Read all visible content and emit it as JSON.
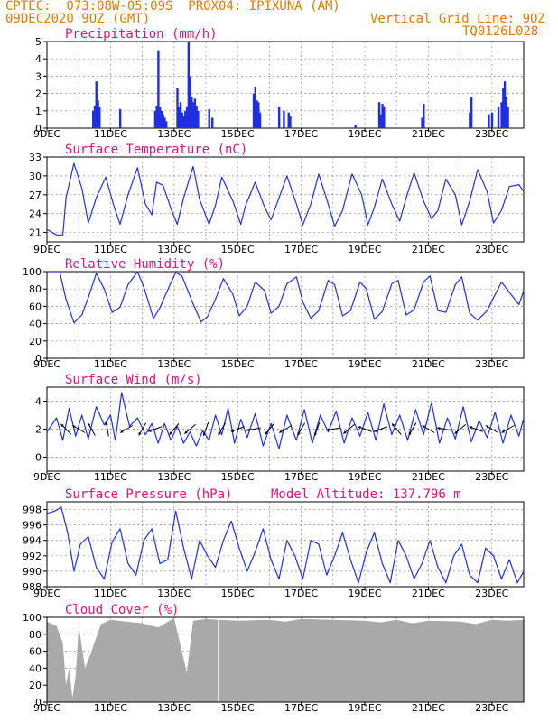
{
  "header": {
    "line1": "CPTEC:  073:08W-05:09S  PROX04: IPIXUNA (AM)",
    "line2": "09DEC2020 9OZ (GMT)",
    "grid_note": "Vertical Grid Line: 9OZ",
    "code": "TQ0126L028"
  },
  "colors": {
    "series": "#1f2fe0",
    "panel_title": "#e0107a",
    "header": "#e07a00",
    "cloud": "#a9a9a9"
  },
  "x_ticks": [
    "9DEC",
    "11DEC",
    "13DEC",
    "15DEC",
    "17DEC",
    "19DEC",
    "21DEC",
    "23DEC"
  ],
  "chart_data": [
    {
      "id": "precip",
      "type": "bar",
      "title": "Precipitation (mm/h)",
      "ylim": [
        0,
        5
      ],
      "yticks": [
        0,
        1,
        2,
        3,
        4,
        5
      ],
      "x_range_days": [
        0,
        15
      ],
      "x_day": [
        1.45,
        1.5,
        1.55,
        1.6,
        1.65,
        2.3,
        3.4,
        3.45,
        3.5,
        3.55,
        3.6,
        3.65,
        3.7,
        3.75,
        4.1,
        4.15,
        4.2,
        4.25,
        4.3,
        4.35,
        4.4,
        4.45,
        4.5,
        4.55,
        4.6,
        4.65,
        4.7,
        4.75,
        5.1,
        5.2,
        6.5,
        6.55,
        6.6,
        6.65,
        6.7,
        7.3,
        7.45,
        7.6,
        7.65,
        9.7,
        10.45,
        10.5,
        10.55,
        10.6,
        11.8,
        11.85,
        13.3,
        13.35,
        13.9,
        14.0,
        14.2,
        14.3,
        14.35,
        14.4,
        14.45,
        14.5
      ],
      "values": [
        1.0,
        1.3,
        2.7,
        1.6,
        1.2,
        1.1,
        1.0,
        1.3,
        4.5,
        1.2,
        1.0,
        0.8,
        0.6,
        0.4,
        2.3,
        1.2,
        1.5,
        0.9,
        0.7,
        1.0,
        1.2,
        5.0,
        3.0,
        1.8,
        1.5,
        1.7,
        1.3,
        1.0,
        1.1,
        0.6,
        2.0,
        2.4,
        1.6,
        1.5,
        0.9,
        1.2,
        1.0,
        0.9,
        0.7,
        0.2,
        1.5,
        0.8,
        1.4,
        1.2,
        0.6,
        1.4,
        0.9,
        1.8,
        0.8,
        0.9,
        1.2,
        1.5,
        2.3,
        2.7,
        1.8,
        1.2
      ]
    },
    {
      "id": "temp",
      "type": "line",
      "title": "Surface Temperature (nC)",
      "ylim": [
        19.5,
        33
      ],
      "yticks": [
        21,
        24,
        27,
        30,
        33
      ],
      "x_range_days": [
        0,
        15
      ],
      "x_day": [
        0,
        0.3,
        0.5,
        0.6,
        0.85,
        1.1,
        1.3,
        1.55,
        1.85,
        2.1,
        2.3,
        2.55,
        2.85,
        3.1,
        3.3,
        3.45,
        3.65,
        3.9,
        4.1,
        4.3,
        4.6,
        4.8,
        5.1,
        5.3,
        5.5,
        5.85,
        6.1,
        6.25,
        6.55,
        6.85,
        7.05,
        7.3,
        7.55,
        7.85,
        8.05,
        8.3,
        8.55,
        8.85,
        9.05,
        9.3,
        9.6,
        9.9,
        10.1,
        10.3,
        10.55,
        10.85,
        11.1,
        11.3,
        11.55,
        11.85,
        12.1,
        12.3,
        12.55,
        12.85,
        13.05,
        13.3,
        13.55,
        13.85,
        14.05,
        14.3,
        14.55,
        14.85,
        15
      ],
      "y": [
        21.5,
        20.6,
        20.6,
        26.5,
        32.0,
        28.0,
        22.5,
        26.5,
        29.8,
        25.3,
        22.3,
        27.0,
        31.3,
        25.5,
        23.8,
        29.0,
        28.5,
        24.8,
        22.3,
        26.5,
        31.5,
        26.3,
        22.3,
        25.3,
        29.8,
        26.0,
        22.3,
        25.3,
        29.0,
        25.0,
        23.0,
        26.5,
        30.0,
        25.5,
        22.2,
        25.5,
        30.3,
        25.5,
        22.0,
        24.5,
        30.3,
        27.0,
        22.2,
        25.0,
        29.5,
        25.5,
        22.8,
        26.5,
        30.5,
        26.0,
        23.2,
        24.5,
        29.5,
        27.0,
        22.2,
        26.0,
        31.0,
        27.5,
        22.5,
        24.5,
        28.3,
        28.6,
        27.5
      ]
    },
    {
      "id": "rh",
      "type": "line",
      "title": "Relative Humidity (%)",
      "ylim": [
        0,
        100
      ],
      "yticks": [
        0,
        20,
        40,
        60,
        80,
        100
      ],
      "x_range_days": [
        0,
        15
      ],
      "x_day": [
        0,
        0.2,
        0.4,
        0.6,
        0.85,
        1.1,
        1.3,
        1.55,
        1.8,
        2.05,
        2.3,
        2.55,
        2.85,
        3.05,
        3.35,
        3.55,
        3.85,
        4.05,
        4.25,
        4.55,
        4.85,
        5.05,
        5.3,
        5.55,
        5.85,
        6.05,
        6.3,
        6.55,
        6.85,
        7.05,
        7.3,
        7.55,
        7.85,
        8.05,
        8.3,
        8.55,
        8.85,
        9.05,
        9.3,
        9.55,
        9.85,
        10.05,
        10.3,
        10.55,
        10.85,
        11.05,
        11.3,
        11.55,
        11.85,
        12.05,
        12.3,
        12.55,
        12.85,
        13.05,
        13.3,
        13.55,
        13.85,
        14.05,
        14.3,
        14.55,
        14.85,
        15
      ],
      "y": [
        100,
        100,
        100,
        68,
        41,
        50,
        70,
        98,
        80,
        53,
        59,
        85,
        100,
        82,
        46,
        58,
        83,
        99,
        95,
        67,
        42,
        48,
        68,
        92,
        74,
        49,
        60,
        88,
        78,
        52,
        60,
        86,
        94,
        65,
        46,
        55,
        90,
        85,
        49,
        55,
        88,
        80,
        45,
        54,
        86,
        90,
        50,
        56,
        88,
        95,
        55,
        53,
        85,
        94,
        52,
        44,
        55,
        70,
        88,
        76,
        62,
        78
      ]
    },
    {
      "id": "wind",
      "type": "line",
      "title": "Surface Wind (m/s)",
      "ylim": [
        -1,
        5
      ],
      "yticks": [
        0,
        2,
        4
      ],
      "x_range_days": [
        0,
        15
      ],
      "x_day": [
        0,
        0.3,
        0.5,
        0.7,
        0.9,
        1.1,
        1.3,
        1.55,
        1.8,
        2.0,
        2.15,
        2.35,
        2.6,
        2.85,
        3.1,
        3.3,
        3.5,
        3.7,
        3.9,
        4.1,
        4.3,
        4.5,
        4.7,
        4.9,
        5.1,
        5.3,
        5.5,
        5.7,
        5.9,
        6.1,
        6.3,
        6.55,
        6.8,
        7.05,
        7.3,
        7.55,
        7.85,
        8.1,
        8.35,
        8.6,
        8.85,
        9.1,
        9.35,
        9.6,
        9.85,
        10.1,
        10.35,
        10.6,
        10.85,
        11.1,
        11.35,
        11.6,
        11.85,
        12.1,
        12.35,
        12.6,
        12.85,
        13.1,
        13.35,
        13.6,
        13.85,
        14.1,
        14.35,
        14.6,
        14.85,
        15
      ],
      "y": [
        1.8,
        2.8,
        1.2,
        3.5,
        1.5,
        3.0,
        1.3,
        3.6,
        2.3,
        3.0,
        1.2,
        4.6,
        2.2,
        2.8,
        1.6,
        2.4,
        1.0,
        2.4,
        1.2,
        2.2,
        1.0,
        1.8,
        0.8,
        1.9,
        1.2,
        3.0,
        1.6,
        3.5,
        1.0,
        2.7,
        1.4,
        3.1,
        0.8,
        2.4,
        0.6,
        3.0,
        1.2,
        3.4,
        1.0,
        3.0,
        1.8,
        3.3,
        1.0,
        2.8,
        1.5,
        3.2,
        1.2,
        3.8,
        1.6,
        3.0,
        1.2,
        3.4,
        1.6,
        3.9,
        1.0,
        2.8,
        1.3,
        3.6,
        1.1,
        2.6,
        1.4,
        3.2,
        1.0,
        3.0,
        1.5,
        2.8
      ],
      "arrows_day": [
        0.6,
        1.0,
        1.4,
        1.9,
        2.5,
        3.0,
        3.4,
        4.0,
        4.5,
        5.0,
        5.5,
        6.0,
        6.5,
        7.0,
        7.5,
        8.0,
        8.5,
        9.0,
        9.5,
        10.0,
        10.5,
        11.0,
        11.5,
        12.0,
        12.5,
        13.0,
        13.5,
        14.0,
        14.5
      ],
      "arrows_dir": [
        315,
        300,
        330,
        350,
        240,
        210,
        250,
        220,
        230,
        200,
        210,
        250,
        260,
        220,
        240,
        210,
        200,
        260,
        230,
        290,
        250,
        320,
        210,
        300,
        280,
        230,
        290,
        300,
        240
      ]
    },
    {
      "id": "pres",
      "type": "line",
      "title": "Surface Pressure (hPa)",
      "subtitle": "Model Altitude: 137.796 m",
      "ylim": [
        988,
        999
      ],
      "yticks": [
        988,
        990,
        992,
        994,
        996,
        998
      ],
      "x_range_days": [
        0,
        15
      ],
      "x_day": [
        0,
        0.25,
        0.45,
        0.65,
        0.85,
        1.05,
        1.3,
        1.55,
        1.8,
        2.05,
        2.3,
        2.55,
        2.8,
        3.05,
        3.3,
        3.55,
        3.8,
        4.05,
        4.3,
        4.55,
        4.8,
        5.05,
        5.3,
        5.55,
        5.8,
        6.05,
        6.3,
        6.55,
        6.8,
        7.05,
        7.3,
        7.55,
        7.8,
        8.05,
        8.3,
        8.55,
        8.8,
        9.05,
        9.3,
        9.55,
        9.8,
        10.05,
        10.3,
        10.55,
        10.8,
        11.05,
        11.3,
        11.55,
        11.8,
        12.05,
        12.3,
        12.55,
        12.8,
        13.05,
        13.3,
        13.55,
        13.8,
        14.05,
        14.3,
        14.55,
        14.8,
        15
      ],
      "y": [
        997.5,
        997.8,
        998.3,
        995,
        990,
        993.5,
        994.5,
        990.5,
        989,
        993.8,
        995.5,
        991,
        989.5,
        994,
        995.5,
        991,
        991.5,
        997.8,
        993,
        989,
        994,
        992,
        990.5,
        994,
        996.5,
        993,
        990,
        992.5,
        995.5,
        991.5,
        989,
        994,
        992,
        989,
        994,
        993.5,
        989.5,
        992,
        995,
        991.5,
        988.5,
        992.5,
        995,
        991,
        988.5,
        994,
        992,
        989,
        991,
        994,
        990.5,
        988.5,
        992,
        993.5,
        989.5,
        988.5,
        993,
        992,
        989,
        991.5,
        988.5,
        990
      ]
    },
    {
      "id": "cloud",
      "type": "area",
      "title": "Cloud Cover (%)",
      "ylim": [
        0,
        100
      ],
      "yticks": [
        0,
        20,
        40,
        60,
        80,
        100
      ],
      "x_range_days": [
        0,
        15
      ],
      "x_day": [
        0,
        0.3,
        0.5,
        0.6,
        0.7,
        0.8,
        0.9,
        1.0,
        1.2,
        1.4,
        1.7,
        2.0,
        2.5,
        3.0,
        3.5,
        4.0,
        4.4,
        4.6,
        5.0,
        6.0,
        7.0,
        7.5,
        8.0,
        9.0,
        10.0,
        10.5,
        11.0,
        11.5,
        12.0,
        13.0,
        13.5,
        14.0,
        14.5,
        15
      ],
      "y": [
        95,
        90,
        70,
        20,
        40,
        5,
        30,
        90,
        40,
        60,
        92,
        97,
        95,
        93,
        88,
        99,
        35,
        96,
        98,
        96,
        97,
        95,
        98,
        97,
        96,
        94,
        97,
        93,
        96,
        95,
        92,
        97,
        96,
        97
      ]
    }
  ]
}
